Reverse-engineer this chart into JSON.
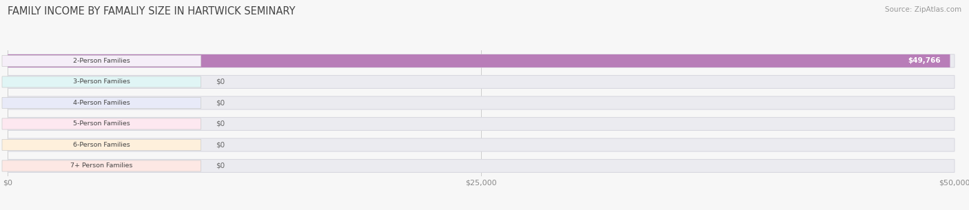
{
  "title": "FAMILY INCOME BY FAMALIY SIZE IN HARTWICK SEMINARY",
  "source": "Source: ZipAtlas.com",
  "categories": [
    "2-Person Families",
    "3-Person Families",
    "4-Person Families",
    "5-Person Families",
    "6-Person Families",
    "7+ Person Families"
  ],
  "values": [
    49766,
    0,
    0,
    0,
    0,
    0
  ],
  "bar_colors": [
    "#b87db8",
    "#6fc4c0",
    "#9fa8d8",
    "#f090aa",
    "#f5c080",
    "#f0a898"
  ],
  "label_bg_colors": [
    "#f5eef8",
    "#e0f5f5",
    "#e8eaf8",
    "#fde8f0",
    "#fef0dc",
    "#fde8e4"
  ],
  "value_labels": [
    "$49,766",
    "$0",
    "$0",
    "$0",
    "$0",
    "$0"
  ],
  "xlim": [
    0,
    50000
  ],
  "xticks": [
    0,
    25000,
    50000
  ],
  "xticklabels": [
    "$0",
    "$25,000",
    "$50,000"
  ],
  "background_color": "#f7f7f7",
  "bar_bg_color": "#ebebf0",
  "title_fontsize": 10.5,
  "source_fontsize": 7.5,
  "figsize": [
    14.06,
    3.05
  ],
  "dpi": 100
}
